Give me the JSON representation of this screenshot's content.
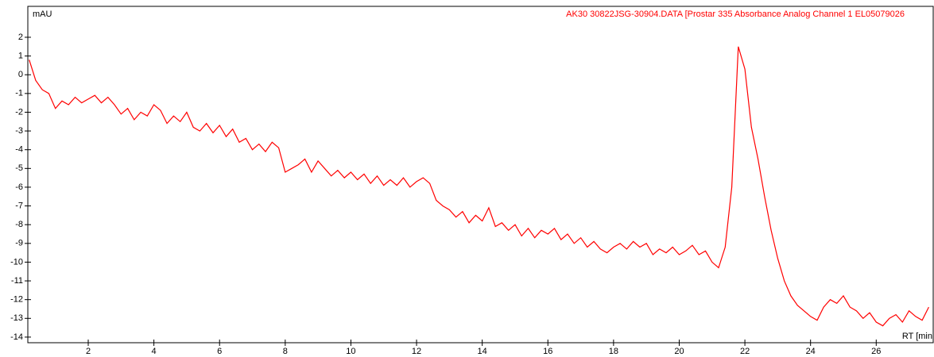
{
  "chart_data": {
    "type": "line",
    "y_label": "mAU",
    "x_label": "RT [min",
    "series": [
      {
        "name": "AK30 30822JSG-30904.DATA [Prostar 335 Absorbance Analog Channel 1 EL05079026",
        "color": "#ff0000",
        "values": [
          0.8,
          -0.3,
          -0.8,
          -1.0,
          -1.8,
          -1.4,
          -1.6,
          -1.2,
          -1.5,
          -1.3,
          -1.1,
          -1.5,
          -1.2,
          -1.6,
          -2.1,
          -1.8,
          -2.4,
          -2.0,
          -2.2,
          -1.6,
          -1.9,
          -2.6,
          -2.2,
          -2.5,
          -2.0,
          -2.8,
          -3.0,
          -2.6,
          -3.1,
          -2.7,
          -3.3,
          -2.9,
          -3.6,
          -3.4,
          -4.0,
          -3.7,
          -4.1,
          -3.6,
          -3.9,
          -5.2,
          -5.0,
          -4.8,
          -4.5,
          -5.2,
          -4.6,
          -5.0,
          -5.4,
          -5.1,
          -5.5,
          -5.2,
          -5.6,
          -5.3,
          -5.8,
          -5.4,
          -5.9,
          -5.6,
          -5.9,
          -5.5,
          -6.0,
          -5.7,
          -5.5,
          -5.8,
          -6.7,
          -7.0,
          -7.2,
          -7.6,
          -7.3,
          -7.9,
          -7.5,
          -7.8,
          -7.1,
          -8.1,
          -7.9,
          -8.3,
          -8.0,
          -8.6,
          -8.2,
          -8.7,
          -8.3,
          -8.5,
          -8.2,
          -8.8,
          -8.5,
          -9.0,
          -8.7,
          -9.2,
          -8.9,
          -9.3,
          -9.5,
          -9.2,
          -9.0,
          -9.3,
          -8.9,
          -9.2,
          -9.0,
          -9.6,
          -9.3,
          -9.5,
          -9.2,
          -9.6,
          -9.4,
          -9.1,
          -9.6,
          -9.4,
          -10.0,
          -10.3,
          -9.2,
          -6.0,
          1.5,
          0.3,
          -2.8,
          -4.5,
          -6.5,
          -8.3,
          -9.8,
          -11.0,
          -11.8,
          -12.3,
          -12.6,
          -12.9,
          -13.1,
          -12.4,
          -12.0,
          -12.2,
          -11.8,
          -12.4,
          -12.6,
          -13.0,
          -12.7,
          -13.2,
          -13.4,
          -13.0,
          -12.8,
          -13.2,
          -12.6,
          -12.9,
          -13.1,
          -12.4
        ]
      }
    ],
    "x": [
      0.2,
      0.4,
      0.6,
      0.8,
      1.0,
      1.2,
      1.4,
      1.6,
      1.8,
      2.0,
      2.2,
      2.4,
      2.6,
      2.8,
      3.0,
      3.2,
      3.4,
      3.6,
      3.8,
      4.0,
      4.2,
      4.4,
      4.6,
      4.8,
      5.0,
      5.2,
      5.4,
      5.6,
      5.8,
      6.0,
      6.2,
      6.4,
      6.6,
      6.8,
      7.0,
      7.2,
      7.4,
      7.6,
      7.8,
      8.0,
      8.2,
      8.4,
      8.6,
      8.8,
      9.0,
      9.2,
      9.4,
      9.6,
      9.8,
      10.0,
      10.2,
      10.4,
      10.6,
      10.8,
      11.0,
      11.2,
      11.4,
      11.6,
      11.8,
      12.0,
      12.2,
      12.4,
      12.6,
      12.8,
      13.0,
      13.2,
      13.4,
      13.6,
      13.8,
      14.0,
      14.2,
      14.4,
      14.6,
      14.8,
      15.0,
      15.2,
      15.4,
      15.6,
      15.8,
      16.0,
      16.2,
      16.4,
      16.6,
      16.8,
      17.0,
      17.2,
      17.4,
      17.6,
      17.8,
      18.0,
      18.2,
      18.4,
      18.6,
      18.8,
      19.0,
      19.2,
      19.4,
      19.6,
      19.8,
      20.0,
      20.2,
      20.4,
      20.6,
      20.8,
      21.0,
      21.2,
      21.4,
      21.6,
      21.8,
      22.0,
      22.2,
      22.4,
      22.6,
      22.8,
      23.0,
      23.2,
      23.4,
      23.6,
      23.8,
      24.0,
      24.2,
      24.4,
      24.6,
      24.8,
      25.0,
      25.2,
      25.4,
      25.6,
      25.8,
      26.0,
      26.2,
      26.4,
      26.6,
      26.8,
      27.0,
      27.2,
      27.4,
      27.6
    ],
    "xlim": [
      0.16,
      27.76
    ],
    "ylim": [
      -14.3,
      3.65
    ],
    "xticks": [
      2,
      4,
      6,
      8,
      10,
      12,
      14,
      16,
      18,
      20,
      22,
      24,
      26
    ],
    "yticks": [
      -14,
      -13,
      -12,
      -11,
      -10,
      -9,
      -8,
      -7,
      -6,
      -5,
      -4,
      -3,
      -2,
      -1,
      0,
      1,
      2
    ]
  }
}
